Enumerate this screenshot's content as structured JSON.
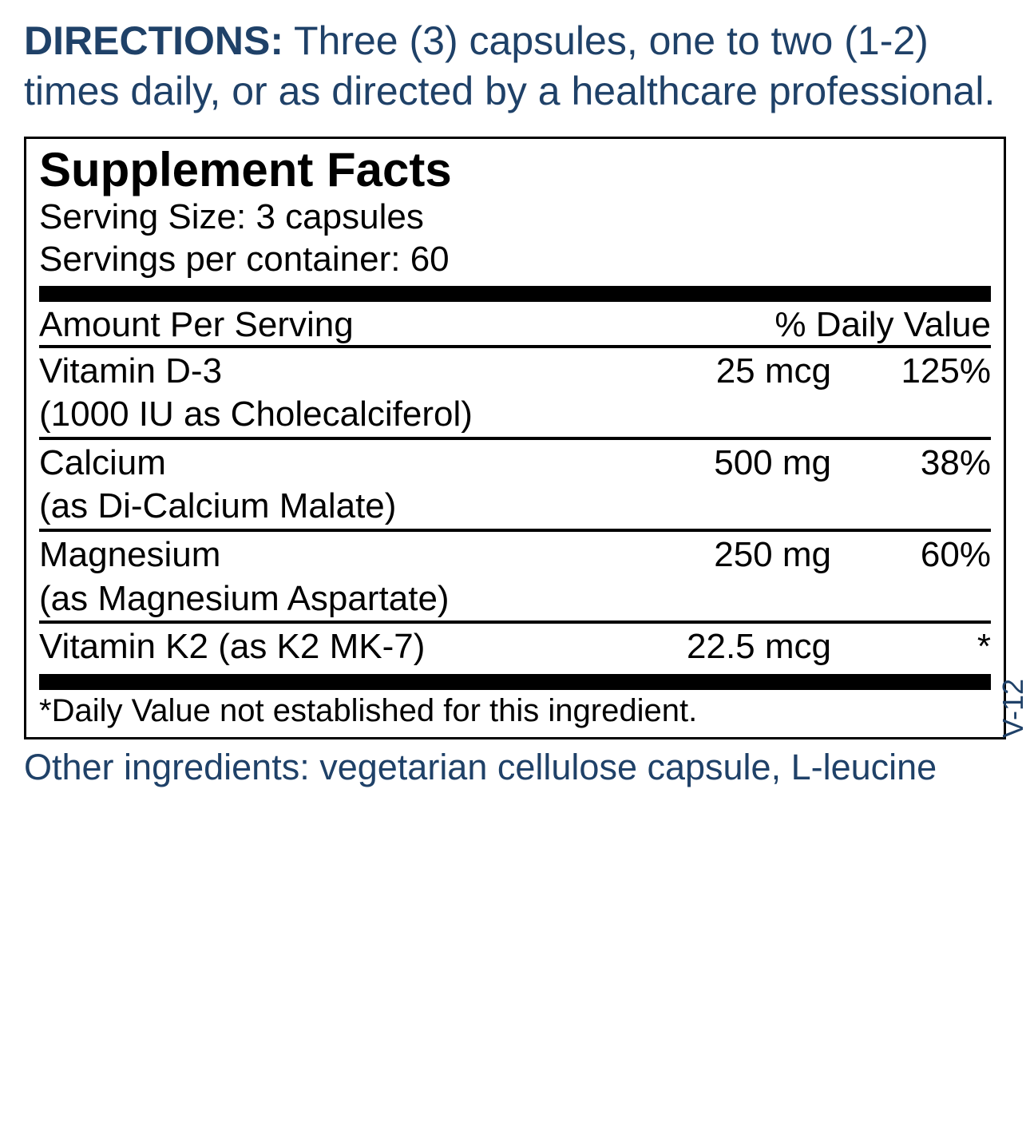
{
  "directions": {
    "label": "DIRECTIONS:",
    "text": "Three (3) capsules, one to two (1-2) times daily, or as directed by a healthcare professional."
  },
  "facts": {
    "title": "Supplement Facts",
    "serving_size_label": "Serving Size:",
    "serving_size_value": "3 capsules",
    "servings_label": "Servings per container:",
    "servings_value": "60",
    "col_amount_label": "Amount Per Serving",
    "col_dv_label": "% Daily Value",
    "rows": [
      {
        "name": "Vitamin D-3",
        "sub": "(1000 IU as Cholecalciferol)",
        "amount": "25 mcg",
        "dv": "125%"
      },
      {
        "name": "Calcium",
        "sub": "(as Di-Calcium Malate)",
        "amount": "500 mg",
        "dv": "38%"
      },
      {
        "name": "Magnesium",
        "sub": "(as Magnesium Aspartate)",
        "amount": "250 mg",
        "dv": "60%"
      },
      {
        "name": "Vitamin K2 (as K2 MK-7)",
        "sub": "",
        "amount": "22.5 mcg",
        "dv": "*"
      }
    ],
    "footnote": "*Daily Value not established for this ingredient."
  },
  "side_code": "V-12",
  "other_ingredients": {
    "label": "Other ingredients:",
    "text": "vegetarian cellulose capsule, L-leucine"
  },
  "colors": {
    "text_navy": "#1f4168",
    "text_black": "#000000",
    "background": "#ffffff"
  }
}
